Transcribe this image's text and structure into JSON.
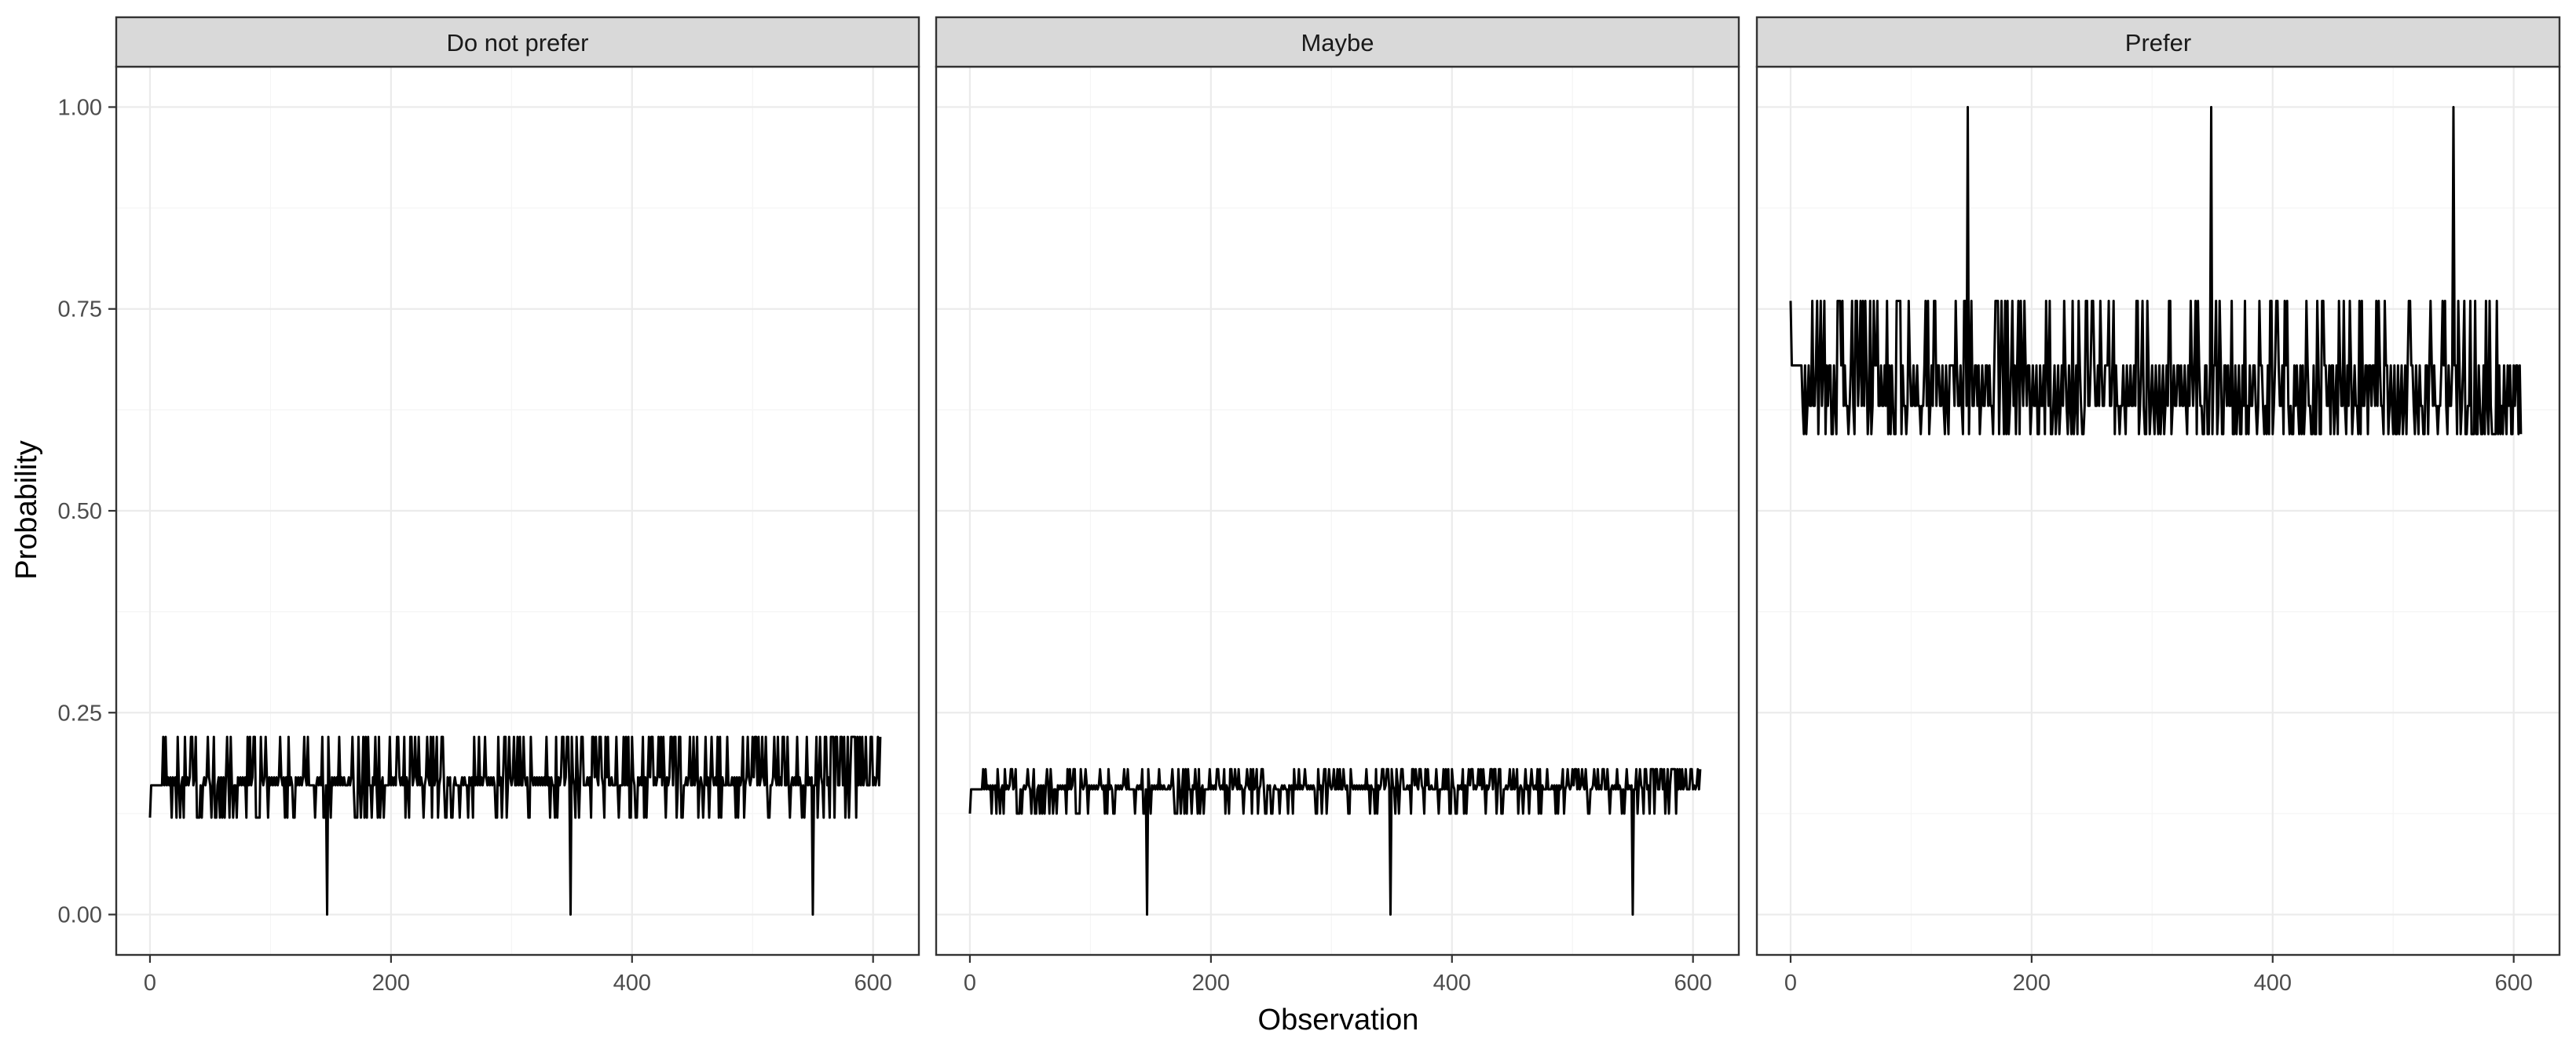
{
  "chart_data": {
    "type": "line",
    "facet_by": "response category",
    "xlabel": "Observation",
    "ylabel": "Probability",
    "xlim": [
      -28,
      638
    ],
    "ylim": [
      -0.05,
      1.05
    ],
    "x_ticks": [
      0,
      200,
      400,
      600
    ],
    "x_tick_labels": [
      "0",
      "200",
      "400",
      "600"
    ],
    "y_ticks": [
      0,
      0.25,
      0.5,
      0.75,
      1.0
    ],
    "y_tick_labels": [
      "0.00",
      "0.25",
      "0.50",
      "0.75",
      "1.00"
    ],
    "grid": true,
    "legend": "none",
    "n_observations": 607,
    "panels": [
      {
        "name": "Do not prefer",
        "levels": [
          0.12,
          0.16,
          0.17,
          0.22
        ],
        "base": 0.16,
        "spike_at": [
          147,
          349,
          550
        ],
        "spike_value": 0.0
      },
      {
        "name": "Maybe",
        "levels": [
          0.125,
          0.155,
          0.16,
          0.18
        ],
        "base": 0.155,
        "spike_at": [
          147,
          349,
          550
        ],
        "spike_value": 0.0
      },
      {
        "name": "Prefer",
        "levels": [
          0.595,
          0.63,
          0.68,
          0.76
        ],
        "base": 0.68,
        "spike_at": [
          147,
          349,
          550
        ],
        "spike_value": 1.0
      }
    ]
  }
}
